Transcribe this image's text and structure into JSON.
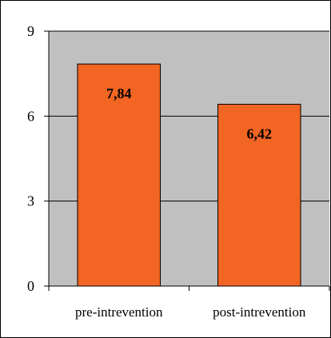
{
  "chart_data": {
    "type": "bar",
    "categories": [
      "pre-intrevention",
      "post-intrevention"
    ],
    "values": [
      7.84,
      6.42
    ],
    "data_labels": [
      "7,84",
      "6,42"
    ],
    "y_ticks": [
      "0",
      "3",
      "6",
      "9"
    ],
    "y_tick_values": [
      0,
      3,
      6,
      9
    ],
    "ylim": [
      0,
      9
    ],
    "title": "",
    "xlabel": "",
    "ylabel": "",
    "grid": true,
    "legend": "none",
    "colors": {
      "bar": "#f26522",
      "plot_bg": "#c0c0c0",
      "bar_edge": "#000000"
    }
  }
}
